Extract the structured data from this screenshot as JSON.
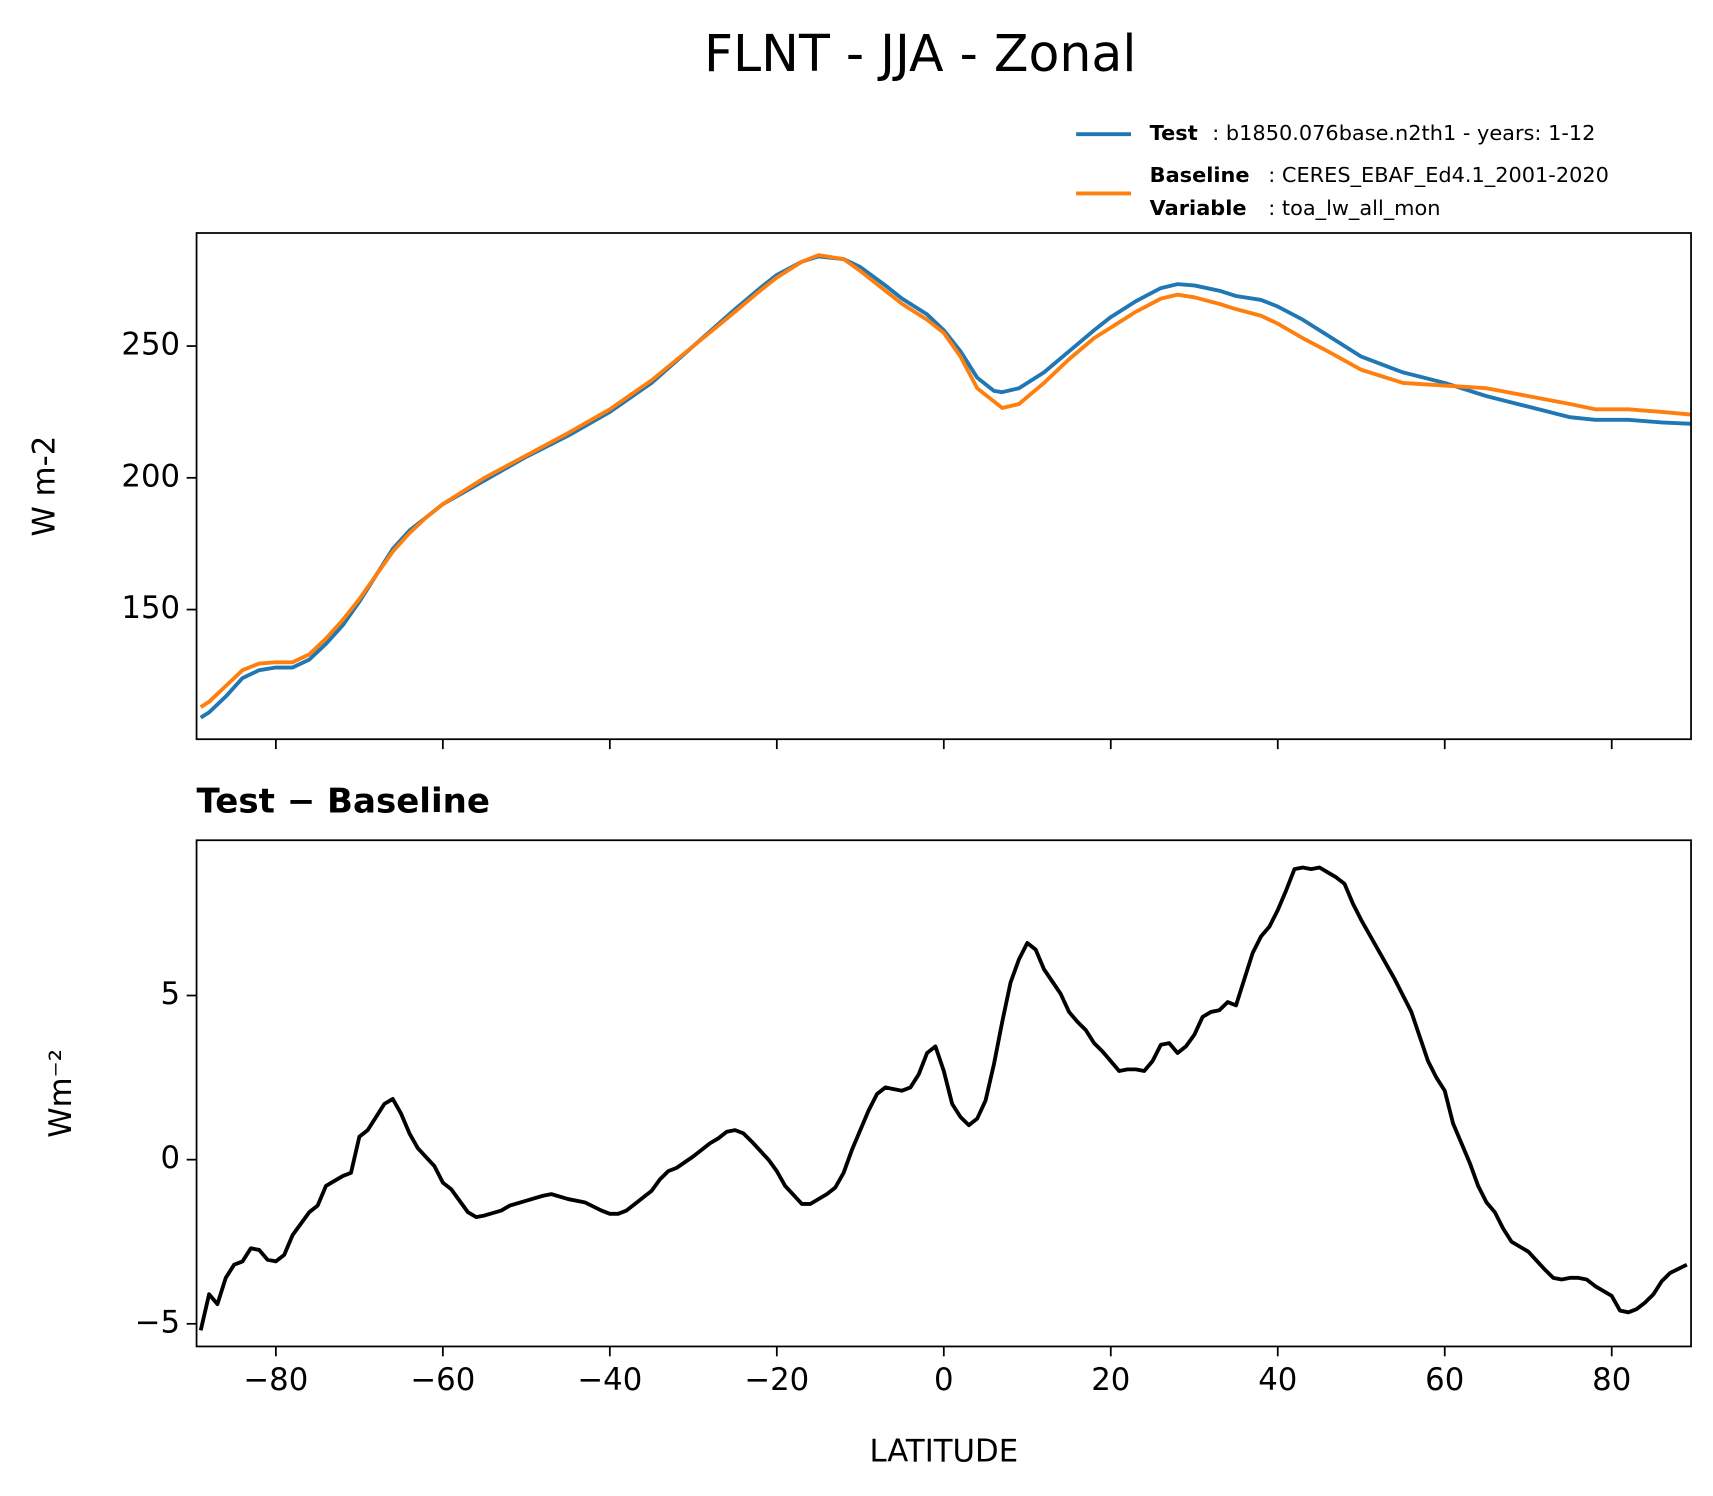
{
  "chart_data": [
    {
      "type": "line",
      "title": "FLNT - JJA - Zonal",
      "ylabel": "W m-2",
      "x": [
        -89,
        -88,
        -86,
        -84,
        -82,
        -80,
        -78,
        -76,
        -74,
        -72,
        -70,
        -68,
        -66,
        -64,
        -62,
        -60,
        -55,
        -50,
        -45,
        -40,
        -35,
        -30,
        -25,
        -22,
        -20,
        -17,
        -15,
        -12,
        -10,
        -7,
        -5,
        -2,
        0,
        2,
        4,
        6,
        7,
        9,
        12,
        15,
        18,
        20,
        23,
        26,
        28,
        30,
        33,
        35,
        38,
        40,
        43,
        46,
        50,
        55,
        60,
        65,
        70,
        75,
        78,
        82,
        86,
        89.5
      ],
      "series": [
        {
          "name": "Test",
          "label": ": b1850.076base.n2th1 - years: 1-12",
          "color": "#1f77b4",
          "values": [
            109,
            111,
            117,
            124,
            127,
            128,
            128,
            131,
            137,
            144,
            153,
            163,
            173,
            180,
            185,
            190,
            199,
            208,
            216,
            225,
            236,
            250,
            264,
            272,
            277,
            282,
            284,
            283,
            280,
            273,
            268,
            262,
            256,
            248,
            238,
            233,
            232.5,
            234,
            240,
            248,
            256,
            261,
            267,
            272,
            273.5,
            273,
            271,
            269,
            267.5,
            265,
            260,
            254,
            246,
            240,
            236,
            231,
            227,
            223,
            222,
            222,
            221,
            220.5
          ]
        },
        {
          "name": "Baseline",
          "label": ": CERES_EBAF_Ed4.1_2001-2020",
          "variable_name": "Variable",
          "variable_label": ": toa_lw_all_mon",
          "color": "#ff7f0e",
          "values": [
            113,
            115,
            121,
            127,
            129.5,
            130,
            130,
            133,
            139,
            146,
            154,
            163,
            172,
            179,
            185,
            190,
            200,
            208.5,
            217,
            226,
            237,
            250,
            263,
            271,
            276,
            282,
            284.5,
            283,
            278.5,
            271,
            266,
            260,
            255,
            246,
            234,
            229,
            226.5,
            228,
            236,
            245,
            253,
            257,
            263,
            268,
            269.5,
            268.5,
            266,
            264,
            261.5,
            258.5,
            253,
            248,
            241,
            236,
            235,
            234,
            231,
            228,
            226,
            226,
            225,
            224
          ]
        }
      ],
      "xlim": [
        -89.5,
        89.5
      ],
      "xticks": [
        -80,
        -60,
        -40,
        -20,
        0,
        20,
        40,
        60,
        80
      ],
      "ylim": [
        100.8,
        292.9
      ],
      "yticks": [
        150,
        200,
        250
      ]
    },
    {
      "type": "line",
      "title": "Test − Baseline",
      "ylabel": "Wm⁻²",
      "xlabel": "LATITUDE",
      "x": [
        -89,
        -88,
        -87,
        -86,
        -85,
        -84,
        -83,
        -82,
        -81,
        -80,
        -79,
        -78,
        -76,
        -75,
        -74,
        -72,
        -71,
        -70,
        -69,
        -67,
        -66,
        -65,
        -64,
        -63,
        -61,
        -60,
        -59,
        -57,
        -56,
        -55,
        -53,
        -52,
        -50,
        -48,
        -47,
        -45,
        -43,
        -41,
        -40,
        -39,
        -38,
        -36,
        -35,
        -34,
        -33,
        -32,
        -30,
        -28,
        -27,
        -26,
        -25,
        -24,
        -23,
        -21,
        -20,
        -19,
        -17,
        -16,
        -14,
        -13,
        -12,
        -11,
        -9,
        -8,
        -7,
        -5,
        -4,
        -3,
        -2,
        -1,
        0,
        1,
        2,
        3,
        4,
        5,
        6,
        7,
        8,
        9,
        10,
        11,
        12,
        14,
        15,
        16,
        17,
        18,
        19,
        20,
        21,
        22,
        23,
        24,
        25,
        26,
        27,
        28,
        29,
        30,
        31,
        32,
        33,
        34,
        35,
        36,
        37,
        38,
        39,
        40,
        41,
        42,
        43,
        44,
        45,
        46,
        47,
        48,
        49,
        50,
        52,
        54,
        56,
        58,
        59,
        60,
        61,
        62,
        63,
        64,
        65,
        66,
        67,
        68,
        70,
        72,
        73,
        74,
        75,
        76,
        77,
        78,
        80,
        81,
        82,
        83,
        84,
        85,
        86,
        87,
        89
      ],
      "series": [
        {
          "name": "Test − Baseline",
          "color": "#000000",
          "values": [
            -5.2,
            -4.1,
            -4.4,
            -3.6,
            -3.2,
            -3.1,
            -2.7,
            -2.75,
            -3.05,
            -3.1,
            -2.9,
            -2.3,
            -1.6,
            -1.4,
            -0.8,
            -0.5,
            -0.4,
            0.7,
            0.9,
            1.7,
            1.85,
            1.4,
            0.8,
            0.35,
            -0.2,
            -0.7,
            -0.9,
            -1.6,
            -1.75,
            -1.7,
            -1.55,
            -1.4,
            -1.25,
            -1.1,
            -1.05,
            -1.2,
            -1.3,
            -1.55,
            -1.65,
            -1.65,
            -1.55,
            -1.15,
            -0.95,
            -0.6,
            -0.35,
            -0.25,
            0.1,
            0.5,
            0.65,
            0.85,
            0.9,
            0.8,
            0.55,
            0.0,
            -0.35,
            -0.8,
            -1.35,
            -1.35,
            -1.05,
            -0.85,
            -0.4,
            0.3,
            1.5,
            2.0,
            2.2,
            2.1,
            2.2,
            2.6,
            3.25,
            3.45,
            2.7,
            1.7,
            1.3,
            1.05,
            1.25,
            1.8,
            2.9,
            4.2,
            5.4,
            6.1,
            6.6,
            6.4,
            5.8,
            5.05,
            4.5,
            4.2,
            3.95,
            3.55,
            3.3,
            3.0,
            2.7,
            2.75,
            2.75,
            2.7,
            3.0,
            3.5,
            3.55,
            3.25,
            3.45,
            3.8,
            4.35,
            4.5,
            4.55,
            4.8,
            4.7,
            5.5,
            6.3,
            6.8,
            7.1,
            7.6,
            8.2,
            8.85,
            8.9,
            8.85,
            8.9,
            8.75,
            8.6,
            8.4,
            7.8,
            7.3,
            6.4,
            5.5,
            4.5,
            3.0,
            2.5,
            2.1,
            1.1,
            0.5,
            -0.1,
            -0.8,
            -1.3,
            -1.6,
            -2.1,
            -2.5,
            -2.8,
            -3.35,
            -3.6,
            -3.65,
            -3.6,
            -3.6,
            -3.65,
            -3.85,
            -4.15,
            -4.6,
            -4.65,
            -4.55,
            -4.35,
            -4.1,
            -3.7,
            -3.45,
            -3.2
          ]
        }
      ],
      "xlim": [
        -89.5,
        89.5
      ],
      "xticks": [
        {
          "value": -80,
          "label": "−80"
        },
        {
          "value": -60,
          "label": "−60"
        },
        {
          "value": -40,
          "label": "−40"
        },
        {
          "value": -20,
          "label": "−20"
        },
        0,
        20,
        40,
        60,
        80
      ],
      "ylim": [
        -5.69,
        9.73
      ],
      "yticks": [
        {
          "value": -5,
          "label": "−5"
        },
        0,
        5
      ]
    }
  ]
}
